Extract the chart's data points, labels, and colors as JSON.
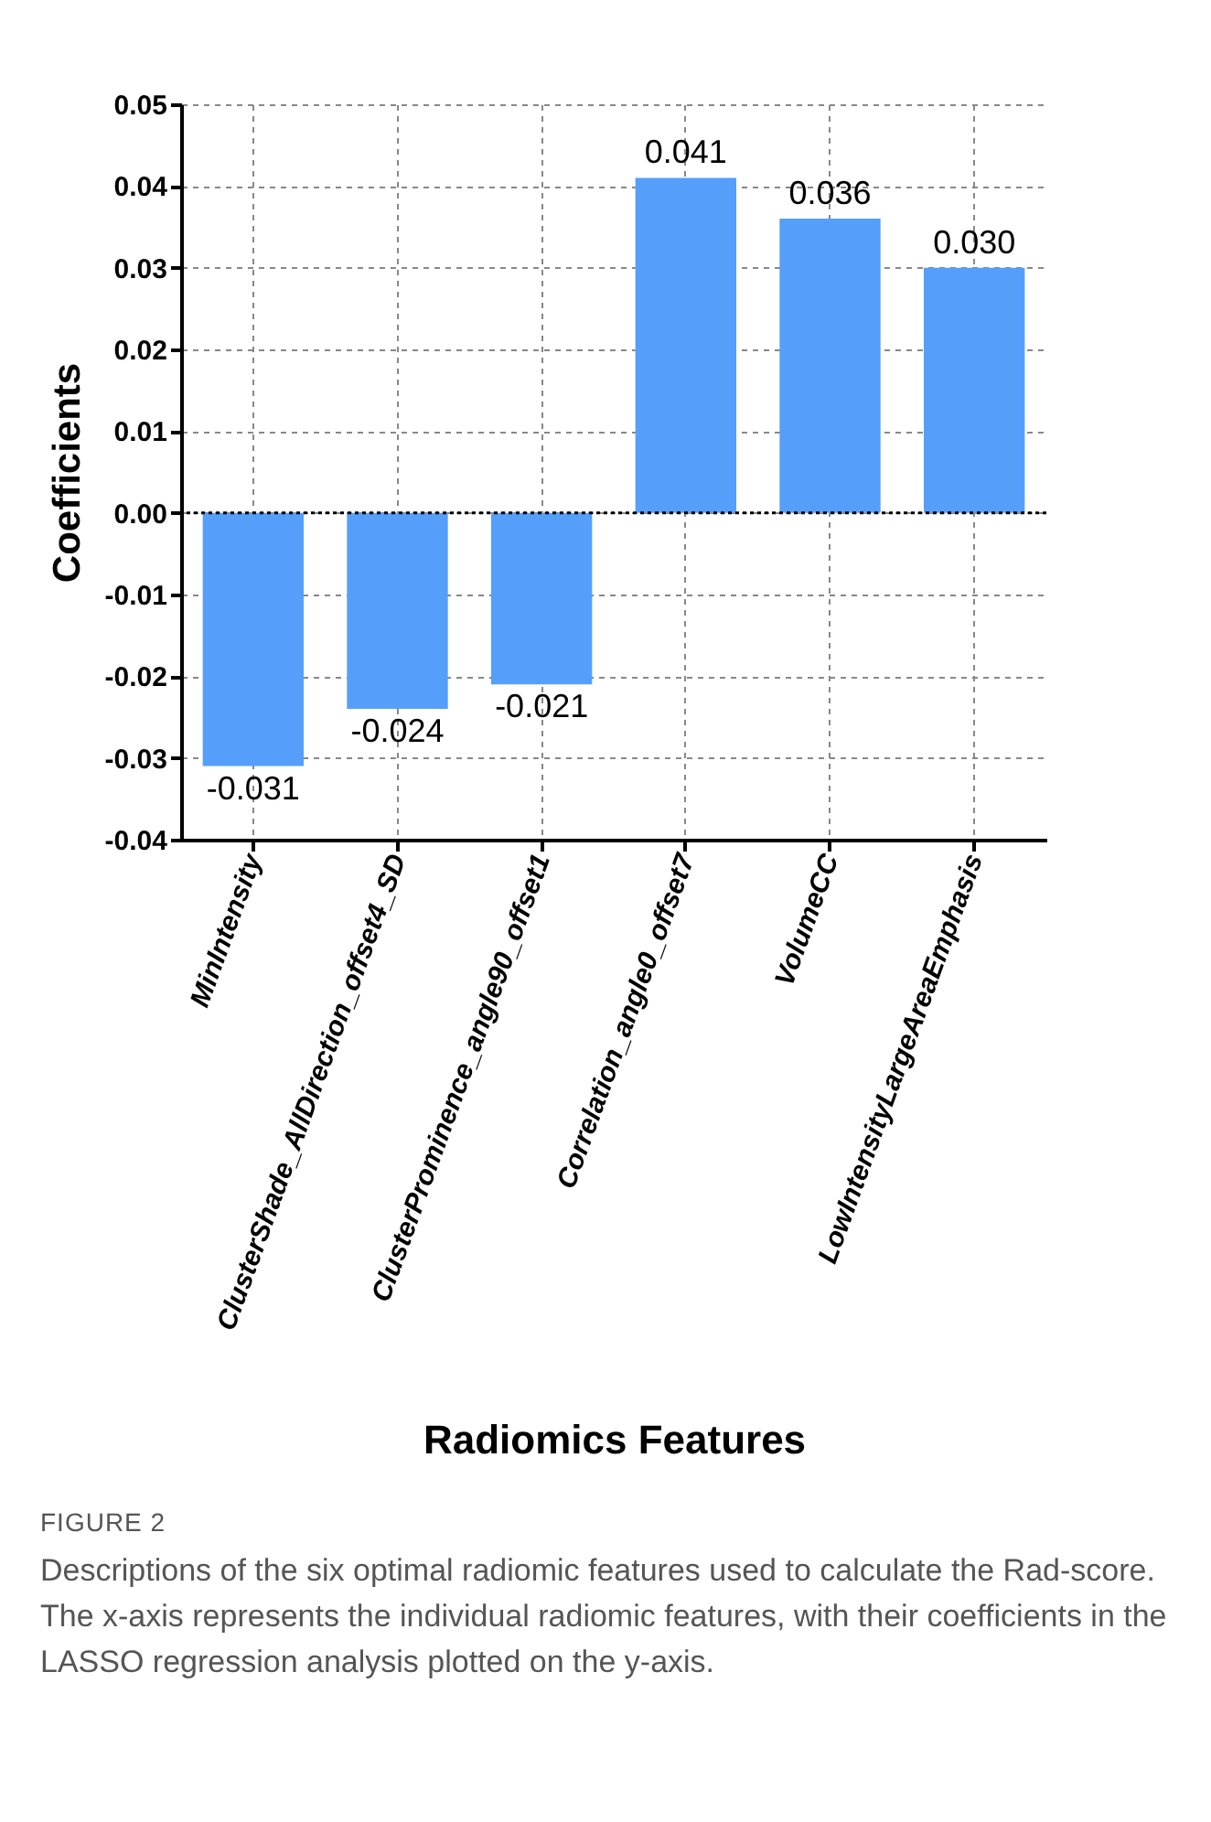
{
  "chart_data": {
    "type": "bar",
    "xlabel": "Radiomics Features",
    "ylabel": "Coefficients",
    "categories": [
      "MinIntensity",
      "ClusterShade_AllDirection_offset4_SD",
      "ClusterProminence_angle90_offset1",
      "Correlation_angle0_offset7",
      "VolumeCC",
      "LowIntensityLargeAreaEmphasis"
    ],
    "values": [
      -0.031,
      -0.024,
      -0.021,
      0.041,
      0.036,
      0.03
    ],
    "value_labels": [
      "-0.031",
      "-0.024",
      "-0.021",
      "0.041",
      "0.036",
      "0.030"
    ],
    "color": "#559ffb",
    "ylim": [
      -0.04,
      0.05
    ],
    "yticks": [
      -0.04,
      -0.03,
      -0.02,
      -0.01,
      {
        "value": 0,
        "label": "0.00"
      },
      0.01,
      0.02,
      0.03,
      0.04,
      0.05
    ],
    "ref_lines": [
      {
        "axis": "y",
        "value": 0,
        "color": "#000000",
        "line_style": "dotted"
      }
    ],
    "grid": true,
    "annotations": [
      "FIGURE 2",
      "Descriptions of the six optimal radiomic features used to calculate the Rad-score. The x-axis represents the individual radiomic features, with their coefficients in the LASSO regression analysis plotted on the y-axis."
    ]
  }
}
